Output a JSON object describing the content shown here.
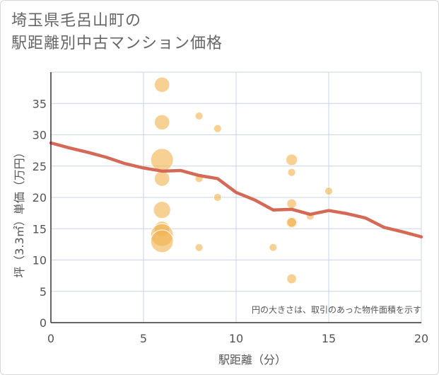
{
  "title_line1": "埼玉県毛呂山町の",
  "title_line2": "駅距離別中古マンション価格",
  "chart_data": {
    "type": "scatter",
    "xlabel": "駅距離（分）",
    "ylabel": "坪（3.3㎡）単価（万円）",
    "xlim": [
      0,
      20
    ],
    "ylim": [
      0,
      40
    ],
    "x_ticks": [
      "0",
      "5",
      "10",
      "15",
      "20"
    ],
    "y_ticks": [
      "0",
      "5",
      "10",
      "15",
      "20",
      "25",
      "30",
      "35"
    ],
    "x_tick_values": [
      0,
      5,
      10,
      15,
      20
    ],
    "y_tick_values": [
      0,
      5,
      10,
      15,
      20,
      25,
      30,
      35
    ],
    "grid": true,
    "annotation": "円の大きさは、取引のあった物件面積を示す",
    "colors": {
      "bubble": "#f2b04c",
      "line": "#d46a55",
      "grid": "#c8d6e5",
      "axis": "#333333"
    },
    "points": [
      {
        "x": 6,
        "y": 38,
        "size": 3
      },
      {
        "x": 6,
        "y": 32,
        "size": 3
      },
      {
        "x": 6,
        "y": 26,
        "size": 5
      },
      {
        "x": 6,
        "y": 23,
        "size": 3
      },
      {
        "x": 6,
        "y": 18,
        "size": 3.5
      },
      {
        "x": 6,
        "y": 15,
        "size": 3
      },
      {
        "x": 6,
        "y": 14,
        "size": 5
      },
      {
        "x": 6,
        "y": 13,
        "size": 5
      },
      {
        "x": 8,
        "y": 33,
        "size": 1
      },
      {
        "x": 8,
        "y": 23,
        "size": 1
      },
      {
        "x": 8,
        "y": 12,
        "size": 1
      },
      {
        "x": 9,
        "y": 31,
        "size": 1
      },
      {
        "x": 9,
        "y": 20,
        "size": 1
      },
      {
        "x": 12,
        "y": 12,
        "size": 1
      },
      {
        "x": 13,
        "y": 26,
        "size": 2
      },
      {
        "x": 13,
        "y": 24,
        "size": 1
      },
      {
        "x": 13,
        "y": 19,
        "size": 1.5
      },
      {
        "x": 13,
        "y": 16,
        "size": 2
      },
      {
        "x": 13,
        "y": 16,
        "size": 1.5
      },
      {
        "x": 13,
        "y": 7,
        "size": 1.5
      },
      {
        "x": 14,
        "y": 17,
        "size": 1
      },
      {
        "x": 15,
        "y": 21,
        "size": 1
      }
    ],
    "trend": {
      "x": [
        0,
        1,
        2,
        3,
        4,
        5,
        6,
        7,
        8,
        9,
        10,
        11,
        12,
        13,
        14,
        15,
        16,
        17,
        18,
        19,
        20
      ],
      "y": [
        28.7,
        27.9,
        27.2,
        26.4,
        25.4,
        24.7,
        24.2,
        24.3,
        23.5,
        23.0,
        20.8,
        19.6,
        18.0,
        18.1,
        17.3,
        17.9,
        17.4,
        16.7,
        15.2,
        14.5,
        13.7
      ]
    }
  }
}
